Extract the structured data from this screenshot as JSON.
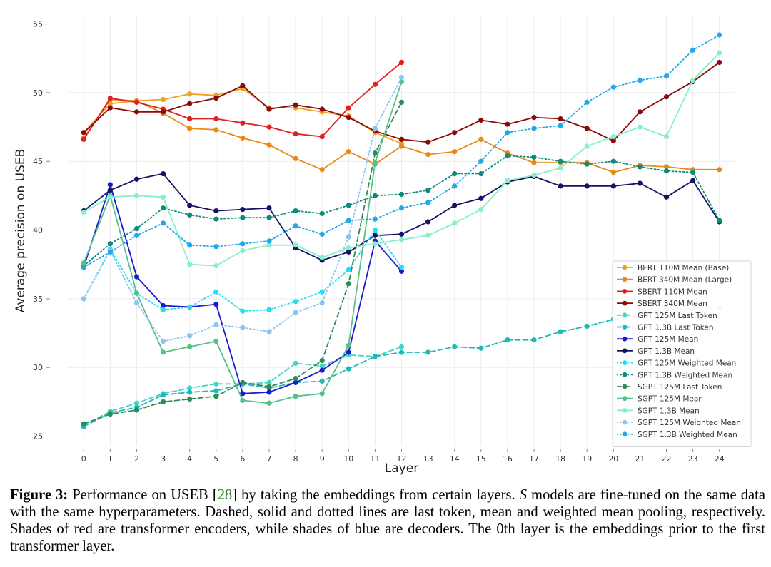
{
  "chart_data": {
    "type": "line",
    "title": "",
    "xlabel": "Layer",
    "ylabel": "Average precision on USEB",
    "xlim": [
      -0.6,
      24.6
    ],
    "ylim": [
      24.3,
      55.6
    ],
    "x_ticks": [
      0,
      1,
      2,
      3,
      4,
      5,
      6,
      7,
      8,
      9,
      10,
      11,
      12,
      13,
      14,
      15,
      16,
      17,
      18,
      19,
      20,
      21,
      22,
      23,
      24
    ],
    "y_ticks": [
      25,
      30,
      35,
      40,
      45,
      50,
      55
    ],
    "grid": true,
    "legend_position": "lower-right",
    "series": [
      {
        "name": "BERT 110M Mean (Base)",
        "color": "#f0a020",
        "style": "solid",
        "x": [
          0,
          1,
          2,
          3,
          4,
          5,
          6,
          7,
          8,
          9,
          10,
          11,
          12
        ],
        "y": [
          47.1,
          49.2,
          49.4,
          49.5,
          49.9,
          49.8,
          50.3,
          48.9,
          48.9,
          48.6,
          48.3,
          47.1,
          46.3
        ]
      },
      {
        "name": "BERT 340M Mean (Large)",
        "color": "#e8891a",
        "style": "solid",
        "x": [
          0,
          1,
          2,
          3,
          4,
          5,
          6,
          7,
          8,
          9,
          10,
          11,
          12,
          13,
          14,
          15,
          16,
          17,
          18,
          19,
          20,
          21,
          22,
          23,
          24
        ],
        "y": [
          46.7,
          49.5,
          49.4,
          48.5,
          47.4,
          47.3,
          46.7,
          46.2,
          45.2,
          44.4,
          45.7,
          44.8,
          46.1,
          45.5,
          45.7,
          46.6,
          45.6,
          44.9,
          44.9,
          44.9,
          44.2,
          44.7,
          44.6,
          44.4,
          44.4
        ]
      },
      {
        "name": "SBERT 110M Mean",
        "color": "#e01f1f",
        "style": "solid",
        "x": [
          0,
          1,
          2,
          3,
          4,
          5,
          6,
          7,
          8,
          9,
          10,
          11,
          12
        ],
        "y": [
          46.6,
          49.6,
          49.3,
          48.8,
          48.1,
          48.1,
          47.8,
          47.5,
          47.0,
          46.8,
          48.9,
          50.6,
          52.2
        ]
      },
      {
        "name": "SBERT 340M Mean",
        "color": "#8b0a0a",
        "style": "solid",
        "x": [
          0,
          1,
          2,
          3,
          4,
          5,
          6,
          7,
          8,
          9,
          10,
          11,
          12,
          13,
          14,
          15,
          16,
          17,
          18,
          19,
          20,
          21,
          22,
          23,
          24
        ],
        "y": [
          47.1,
          48.9,
          48.6,
          48.6,
          49.2,
          49.6,
          50.5,
          48.8,
          49.1,
          48.8,
          48.2,
          47.2,
          46.6,
          46.4,
          47.1,
          48.0,
          47.7,
          48.2,
          48.1,
          47.4,
          46.5,
          48.6,
          49.7,
          50.8,
          52.2
        ]
      },
      {
        "name": "GPT 125M Last Token",
        "color": "#45d4c6",
        "style": "dashed",
        "x": [
          0,
          1,
          2,
          3,
          4,
          5,
          6,
          7,
          8,
          9,
          10,
          11,
          12
        ],
        "y": [
          25.8,
          26.8,
          27.4,
          28.1,
          28.5,
          28.8,
          28.8,
          28.9,
          30.3,
          30.1,
          30.9,
          30.8,
          31.5
        ]
      },
      {
        "name": "GPT 1.3B Last Token",
        "color": "#20b8b8",
        "style": "dashed",
        "x": [
          0,
          1,
          2,
          3,
          4,
          5,
          6,
          7,
          8,
          9,
          10,
          11,
          12,
          13,
          14,
          15,
          16,
          17,
          18,
          19,
          20,
          21,
          22,
          23,
          24
        ],
        "y": [
          25.7,
          26.7,
          27.1,
          28.0,
          28.2,
          28.3,
          28.8,
          28.5,
          28.9,
          29.0,
          29.9,
          30.8,
          31.1,
          31.1,
          31.5,
          31.4,
          32.0,
          32.0,
          32.6,
          33.0,
          33.5,
          33.8,
          34.2,
          34.3,
          34.4
        ]
      },
      {
        "name": "GPT 125M Mean",
        "color": "#1a1ad0",
        "style": "solid",
        "x": [
          0,
          1,
          2,
          3,
          4,
          5,
          6,
          7,
          8,
          9,
          10,
          11,
          12
        ],
        "y": [
          37.3,
          43.3,
          36.6,
          34.5,
          34.4,
          34.6,
          28.1,
          28.2,
          28.9,
          29.8,
          31.1,
          39.2,
          37.0
        ]
      },
      {
        "name": "GPT 1.3B Mean",
        "color": "#141464",
        "style": "solid",
        "x": [
          0,
          1,
          2,
          3,
          4,
          5,
          6,
          7,
          8,
          9,
          10,
          11,
          12,
          13,
          14,
          15,
          16,
          17,
          18,
          19,
          20,
          21,
          22,
          23,
          24
        ],
        "y": [
          41.4,
          42.9,
          43.7,
          44.1,
          41.8,
          41.4,
          41.5,
          41.6,
          38.7,
          37.8,
          38.4,
          39.6,
          39.7,
          40.6,
          41.8,
          42.3,
          43.5,
          43.9,
          43.2,
          43.2,
          43.2,
          43.4,
          42.4,
          43.6,
          40.6
        ]
      },
      {
        "name": "GPT 125M Weighted Mean",
        "color": "#22e0f0",
        "style": "dotted",
        "x": [
          0,
          1,
          2,
          3,
          4,
          5,
          6,
          7,
          8,
          9,
          10,
          11,
          12
        ],
        "y": [
          35.0,
          38.6,
          35.4,
          34.2,
          34.4,
          35.5,
          34.1,
          34.2,
          34.8,
          35.5,
          37.1,
          40.0,
          37.3
        ]
      },
      {
        "name": "GPT 1.3B Weighted Mean",
        "color": "#0f8a7a",
        "style": "dotted",
        "x": [
          0,
          1,
          2,
          3,
          4,
          5,
          6,
          7,
          8,
          9,
          10,
          11,
          12,
          13,
          14,
          15,
          16,
          17,
          18,
          19,
          20,
          21,
          22,
          23,
          24
        ],
        "y": [
          37.4,
          39.0,
          40.1,
          41.6,
          41.1,
          40.8,
          40.9,
          40.9,
          41.4,
          41.2,
          41.8,
          42.5,
          42.6,
          42.9,
          44.1,
          44.1,
          45.4,
          45.3,
          45.0,
          44.8,
          45.0,
          44.6,
          44.3,
          44.2,
          40.7
        ]
      },
      {
        "name": "SGPT 125M Last Token",
        "color": "#2e8b57",
        "style": "dashed",
        "x": [
          0,
          1,
          2,
          3,
          4,
          5,
          6,
          7,
          8,
          9,
          10,
          11,
          12
        ],
        "y": [
          25.9,
          26.6,
          26.9,
          27.5,
          27.7,
          27.9,
          28.9,
          28.6,
          29.2,
          30.5,
          36.1,
          45.6,
          49.3
        ]
      },
      {
        "name": "SGPT 125M Mean",
        "color": "#55c08a",
        "style": "solid",
        "x": [
          0,
          1,
          2,
          3,
          4,
          5,
          6,
          7,
          8,
          9,
          10,
          11,
          12
        ],
        "y": [
          37.6,
          42.5,
          35.4,
          31.1,
          31.5,
          31.9,
          27.6,
          27.4,
          27.9,
          28.1,
          31.6,
          44.9,
          50.8
        ]
      },
      {
        "name": "SGPT 1.3B Mean",
        "color": "#88f0c8",
        "style": "solid",
        "x": [
          0,
          1,
          2,
          3,
          4,
          5,
          6,
          7,
          8,
          9,
          10,
          11,
          12,
          13,
          14,
          15,
          16,
          17,
          18,
          19,
          20,
          21,
          22,
          23,
          24
        ],
        "y": [
          41.3,
          42.4,
          42.5,
          42.4,
          37.5,
          37.4,
          38.5,
          38.9,
          38.9,
          38.0,
          38.7,
          39.0,
          39.3,
          39.6,
          40.5,
          41.5,
          43.6,
          44.0,
          44.5,
          46.1,
          46.8,
          47.5,
          46.8,
          50.9,
          52.9
        ]
      },
      {
        "name": "SGPT 125M Weighted Mean",
        "color": "#8cc4f0",
        "style": "dotted",
        "x": [
          0,
          1,
          2,
          3,
          4,
          5,
          6,
          7,
          8,
          9,
          10,
          11,
          12
        ],
        "y": [
          35.0,
          38.5,
          34.7,
          31.9,
          32.3,
          33.1,
          32.9,
          32.6,
          34.0,
          34.7,
          39.5,
          47.4,
          51.1
        ]
      },
      {
        "name": "SGPT 1.3B Weighted Mean",
        "color": "#20a8e8",
        "style": "dotted",
        "x": [
          0,
          1,
          2,
          3,
          4,
          5,
          6,
          7,
          8,
          9,
          10,
          11,
          12,
          13,
          14,
          15,
          16,
          17,
          18,
          19,
          20,
          21,
          22,
          23,
          24
        ],
        "y": [
          37.3,
          38.4,
          39.6,
          40.5,
          38.9,
          38.8,
          39.0,
          39.2,
          40.3,
          39.7,
          40.7,
          40.8,
          41.6,
          42.0,
          43.2,
          45.0,
          47.1,
          47.4,
          47.6,
          49.3,
          50.4,
          50.9,
          51.2,
          53.1,
          54.2
        ]
      }
    ]
  },
  "caption": {
    "label": "Figure 3:",
    "part1": " Performance on USEB [",
    "cite": "28",
    "part2": "] by taking the embeddings from certain layers. ",
    "italic": "S",
    "part3": " models are fine-tuned on the same data with the same hyperparameters. Dashed, solid and dotted lines are last token, mean and weighted mean pooling, respectively. Shades of red are transformer encoders, while shades of blue are decoders. The 0th layer is the embeddings prior to the first transformer layer."
  }
}
